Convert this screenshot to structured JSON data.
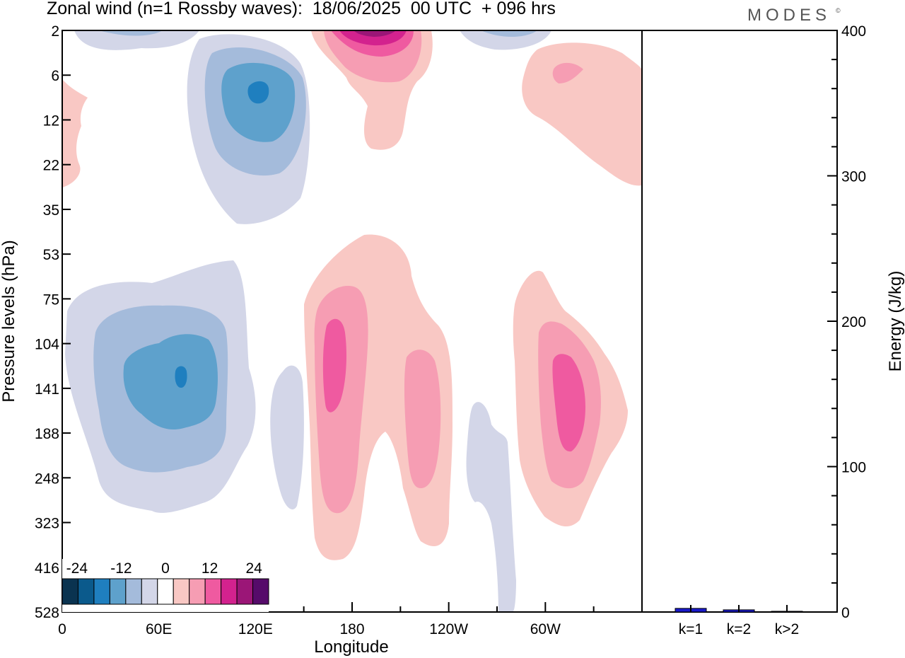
{
  "title": "Zonal wind (n=1 Rossby waves):  18/06/2025  00 UTC  + 096 hrs",
  "brand": "MODES",
  "brand_mark": "©",
  "chart_data": [
    {
      "type": "heatmap",
      "title": "Zonal wind (n=1 Rossby waves):  18/06/2025  00 UTC  + 096 hrs",
      "xlabel": "Longitude",
      "ylabel": "Pressure levels (hPa)",
      "x_tick_labels": [
        "0",
        "60E",
        "120E",
        "180",
        "120W",
        "60W"
      ],
      "x_tick_values_deg": [
        0,
        60,
        120,
        180,
        240,
        300
      ],
      "xlim_deg": [
        0,
        360
      ],
      "y_tick_labels": [
        "2",
        "6",
        "12",
        "22",
        "35",
        "53",
        "75",
        "104",
        "141",
        "188",
        "248",
        "323",
        "416",
        "528"
      ],
      "y_scale": "pressure levels (evenly spaced)",
      "grid": false,
      "colorbar": {
        "placement": "bottom-left inset",
        "tick_labels": [
          "-24",
          "-12",
          "0",
          "12",
          "24"
        ],
        "levels": [
          -28,
          -24,
          -20,
          -16,
          -12,
          -8,
          -4,
          4,
          8,
          12,
          16,
          20,
          24,
          28
        ],
        "colors": [
          "#0a3350",
          "#0b5a8c",
          "#1f7fbf",
          "#5ea1cc",
          "#a4bbdb",
          "#d3d6e8",
          "#ffffff",
          "#f9c8c4",
          "#f69db3",
          "#ef5aa0",
          "#d3228e",
          "#9b1677",
          "#560b6a"
        ]
      },
      "features": [
        {
          "sign": "negative",
          "lon_center": 120,
          "level_center": "8",
          "peak": -20
        },
        {
          "sign": "negative",
          "lon_center": 75,
          "level_center": "141",
          "peak": -20
        },
        {
          "sign": "negative",
          "lon_center": 145,
          "level_center": "188",
          "peak": -4
        },
        {
          "sign": "negative",
          "lon_center": 277,
          "level_center": "248",
          "peak": -4
        },
        {
          "sign": "positive",
          "lon_center": 190,
          "level_center": "2",
          "peak": 24
        },
        {
          "sign": "positive",
          "lon_center": 310,
          "level_center": "10",
          "peak": 8
        },
        {
          "sign": "positive",
          "lon_center": 0,
          "level_center": "12",
          "peak": 4
        },
        {
          "sign": "positive",
          "lon_center": 168,
          "level_center": "104",
          "peak": 12
        },
        {
          "sign": "positive",
          "lon_center": 222,
          "level_center": "141",
          "peak": 8
        },
        {
          "sign": "positive",
          "lon_center": 313,
          "level_center": "141",
          "peak": 12
        }
      ]
    },
    {
      "type": "bar",
      "ylabel": "Energy (J/kg)",
      "categories": [
        "k=1",
        "k=2",
        "k>2"
      ],
      "values": [
        2.5,
        1.5,
        0.5
      ],
      "ylim": [
        0,
        400
      ],
      "y_tick_labels": [
        "0",
        "100",
        "200",
        "300",
        "400"
      ],
      "bar_colors": [
        "#1a1acc",
        "#1a1acc",
        "#1a1acc"
      ]
    }
  ]
}
